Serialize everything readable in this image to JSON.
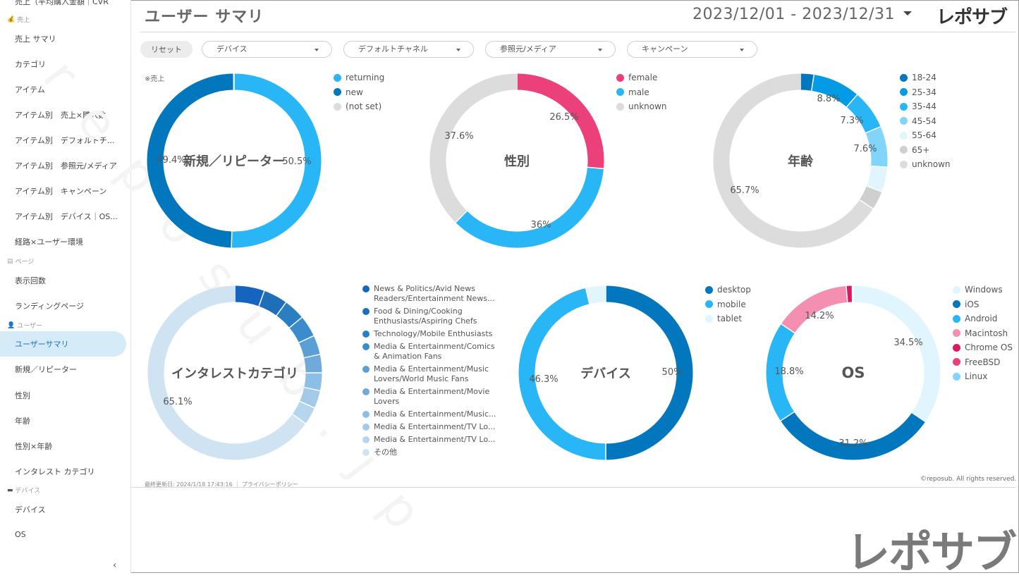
{
  "sidebar": {
    "top_partial": "売上（平均購入金額｜CVR",
    "sections": [
      {
        "label": "売上",
        "icon": "money-bag-icon"
      },
      {
        "label": "ページ",
        "icon": "page-icon"
      },
      {
        "label": "ユーザー",
        "icon": "user-icon"
      },
      {
        "label": "デバイス",
        "icon": "monitor-icon"
      }
    ],
    "items": [
      "売上 サマリ",
      "カテゴリ",
      "アイテム",
      "アイテム別　売上×購入数",
      "アイテム別　デフォルトチ...",
      "アイテム別　参照元/メディア",
      "アイテム別　キャンペーン",
      "アイテム別　デバイス｜OS...",
      "経路×ユーザー環境",
      "表示回数",
      "ランディングページ",
      "ユーザーサマリ",
      "新規／リピーター",
      "性別",
      "年齢",
      "性別×年齢",
      "インタレスト カテゴリ",
      "デバイス",
      "OS"
    ],
    "collapse_icon": "chevron-left-icon"
  },
  "header": {
    "title": "ユーザー サマリ",
    "date_range": "2023/12/01 - 2023/12/31",
    "brand": "レポサブ"
  },
  "filters": {
    "reset": "リセット",
    "items": [
      "デバイス",
      "デフォルトチャネル",
      "参照元/メディア",
      "キャンペーン"
    ]
  },
  "note": "※売上",
  "charts": [
    {
      "title": "新規／リピーター",
      "labels": [
        "50.5%",
        "49.4%"
      ],
      "legend": [
        {
          "name": "returning",
          "color": "#29b6f6"
        },
        {
          "name": "new",
          "color": "#0277bd"
        },
        {
          "name": "(not set)",
          "color": "#dcdcdc"
        }
      ]
    },
    {
      "title": "性別",
      "labels": [
        "26.5%",
        "36%",
        "37.6%"
      ],
      "legend": [
        {
          "name": "female",
          "color": "#ec407a"
        },
        {
          "name": "male",
          "color": "#29b6f6"
        },
        {
          "name": "unknown",
          "color": "#dcdcdc"
        }
      ]
    },
    {
      "title": "年齢",
      "labels": [
        "8.8%",
        "7.3%",
        "7.6%",
        "65.7%"
      ],
      "legend": [
        {
          "name": "18-24",
          "color": "#0277bd"
        },
        {
          "name": "25-34",
          "color": "#039be5"
        },
        {
          "name": "35-44",
          "color": "#29b6f6"
        },
        {
          "name": "45-54",
          "color": "#81d4fa"
        },
        {
          "name": "55-64",
          "color": "#e1f5fe"
        },
        {
          "name": "65+",
          "color": "#cfcfcf"
        },
        {
          "name": "unknown",
          "color": "#dcdcdc"
        }
      ]
    },
    {
      "title": "インタレストカテゴリ",
      "labels": [
        "65.1%"
      ],
      "legend": [
        {
          "name": "News & Politics/Avid News Readers/Entertainment News...",
          "color": "#1565c0"
        },
        {
          "name": "Food & Dining/Cooking Enthusiasts/Aspiring Chefs",
          "color": "#1e6fb8"
        },
        {
          "name": "Technology/Mobile Enthusiasts",
          "color": "#2a7fc2"
        },
        {
          "name": "Media & Entertainment/Comics & Animation Fans",
          "color": "#3a8ccc"
        },
        {
          "name": "Media & Entertainment/Music Lovers/World Music Fans",
          "color": "#5a9fd6"
        },
        {
          "name": "Media & Entertainment/Movie Lovers",
          "color": "#6faadb"
        },
        {
          "name": "Media & Entertainment/Music...",
          "color": "#8cbfe6"
        },
        {
          "name": "Media & Entertainment/TV Lo...",
          "color": "#a3cbe9"
        },
        {
          "name": "Media & Entertainment/TV Lo...",
          "color": "#b6d6ee"
        },
        {
          "name": "その他",
          "color": "#cfe3f2"
        }
      ]
    },
    {
      "title": "デバイス",
      "labels": [
        "50%",
        "46.3%"
      ],
      "legend": [
        {
          "name": "desktop",
          "color": "#0277bd"
        },
        {
          "name": "mobile",
          "color": "#29b6f6"
        },
        {
          "name": "tablet",
          "color": "#e1f5fe"
        }
      ]
    },
    {
      "title": "OS",
      "labels": [
        "34.5%",
        "31.2%",
        "18.8%",
        "14.2%"
      ],
      "legend": [
        {
          "name": "Windows",
          "color": "#e1f5fe"
        },
        {
          "name": "iOS",
          "color": "#0277bd"
        },
        {
          "name": "Android",
          "color": "#29b6f6"
        },
        {
          "name": "Macintosh",
          "color": "#f48fb1"
        },
        {
          "name": "Chrome OS",
          "color": "#d81b60"
        },
        {
          "name": "FreeBSD",
          "color": "#ec407a"
        },
        {
          "name": "Linux",
          "color": "#81d4fa"
        }
      ]
    }
  ],
  "chart_data": [
    {
      "type": "pie",
      "title": "新規／リピーター",
      "categories": [
        "returning",
        "new",
        "(not set)"
      ],
      "values": [
        50.5,
        49.4,
        0.1
      ]
    },
    {
      "type": "pie",
      "title": "性別",
      "categories": [
        "female",
        "male",
        "unknown"
      ],
      "values": [
        26.5,
        36,
        37.6
      ]
    },
    {
      "type": "pie",
      "title": "年齢",
      "categories": [
        "18-24",
        "25-34",
        "35-44",
        "45-54",
        "55-64",
        "65+",
        "unknown"
      ],
      "values": [
        2.5,
        8.8,
        7.3,
        7.6,
        4.6,
        3.5,
        65.7
      ]
    },
    {
      "type": "pie",
      "title": "インタレストカテゴリ",
      "categories": [
        "News & Politics/Avid News Readers/Entertainment News...",
        "Food & Dining/Cooking Enthusiasts/Aspiring Chefs",
        "Technology/Mobile Enthusiasts",
        "Media & Entertainment/Comics & Animation Fans",
        "Media & Entertainment/Music Lovers/World Music Fans",
        "Media & Entertainment/Movie Lovers",
        "Media & Entertainment/Music...",
        "Media & Entertainment/TV Lo...",
        "Media & Entertainment/TV Lo...",
        "その他"
      ],
      "values": [
        5.5,
        4.5,
        4.0,
        4.0,
        3.6,
        3.4,
        3.3,
        3.3,
        3.3,
        65.1
      ]
    },
    {
      "type": "pie",
      "title": "デバイス",
      "categories": [
        "desktop",
        "mobile",
        "tablet"
      ],
      "values": [
        50,
        46.3,
        3.7
      ]
    },
    {
      "type": "pie",
      "title": "OS",
      "categories": [
        "Windows",
        "iOS",
        "Android",
        "Macintosh",
        "Chrome OS",
        "FreeBSD",
        "Linux"
      ],
      "values": [
        34.5,
        31.2,
        18.8,
        14.2,
        1.1,
        0.1,
        0.1
      ]
    }
  ],
  "footer": {
    "updated": "最終更新日: 2024/1/18 17:43:16",
    "privacy": "プライバシーポリシー",
    "copyright": "©reposub. All rights reserved."
  },
  "brand_bottom": "レポサブ",
  "watermark": "reposub.jp"
}
